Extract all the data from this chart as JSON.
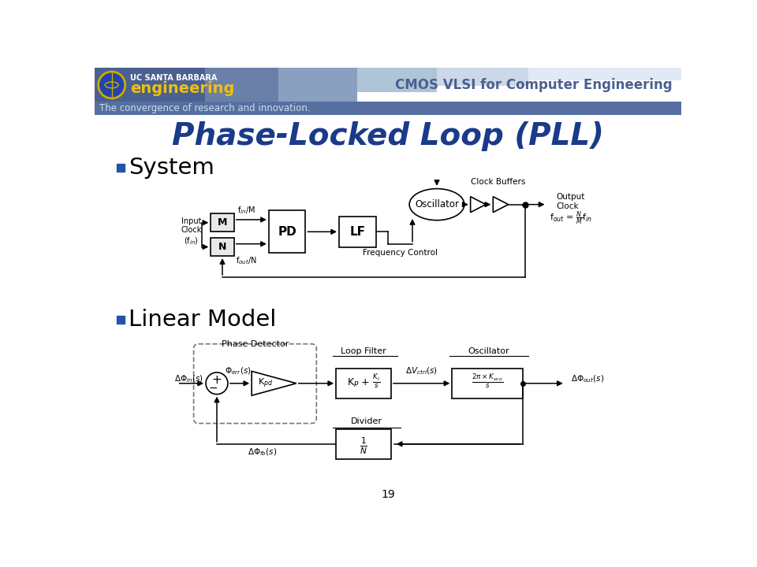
{
  "title": "Phase-Locked Loop (PLL)",
  "title_color": "#1a3a8a",
  "bg_color": "#ffffff",
  "header_text": "CMOS VLSI for Computer Engineering",
  "tagline": "The convergence of research and innovation.",
  "bullet1": "System",
  "bullet2": "Linear Model",
  "page_num": "19",
  "bullet_color": "#2255aa",
  "header_dark_color": "#4a6090",
  "header_mid_color": "#6a80aa",
  "header_light_color": "#c0cce0",
  "tagline_color": "#5570a0",
  "tagline_text_color": "#e0e8f0"
}
